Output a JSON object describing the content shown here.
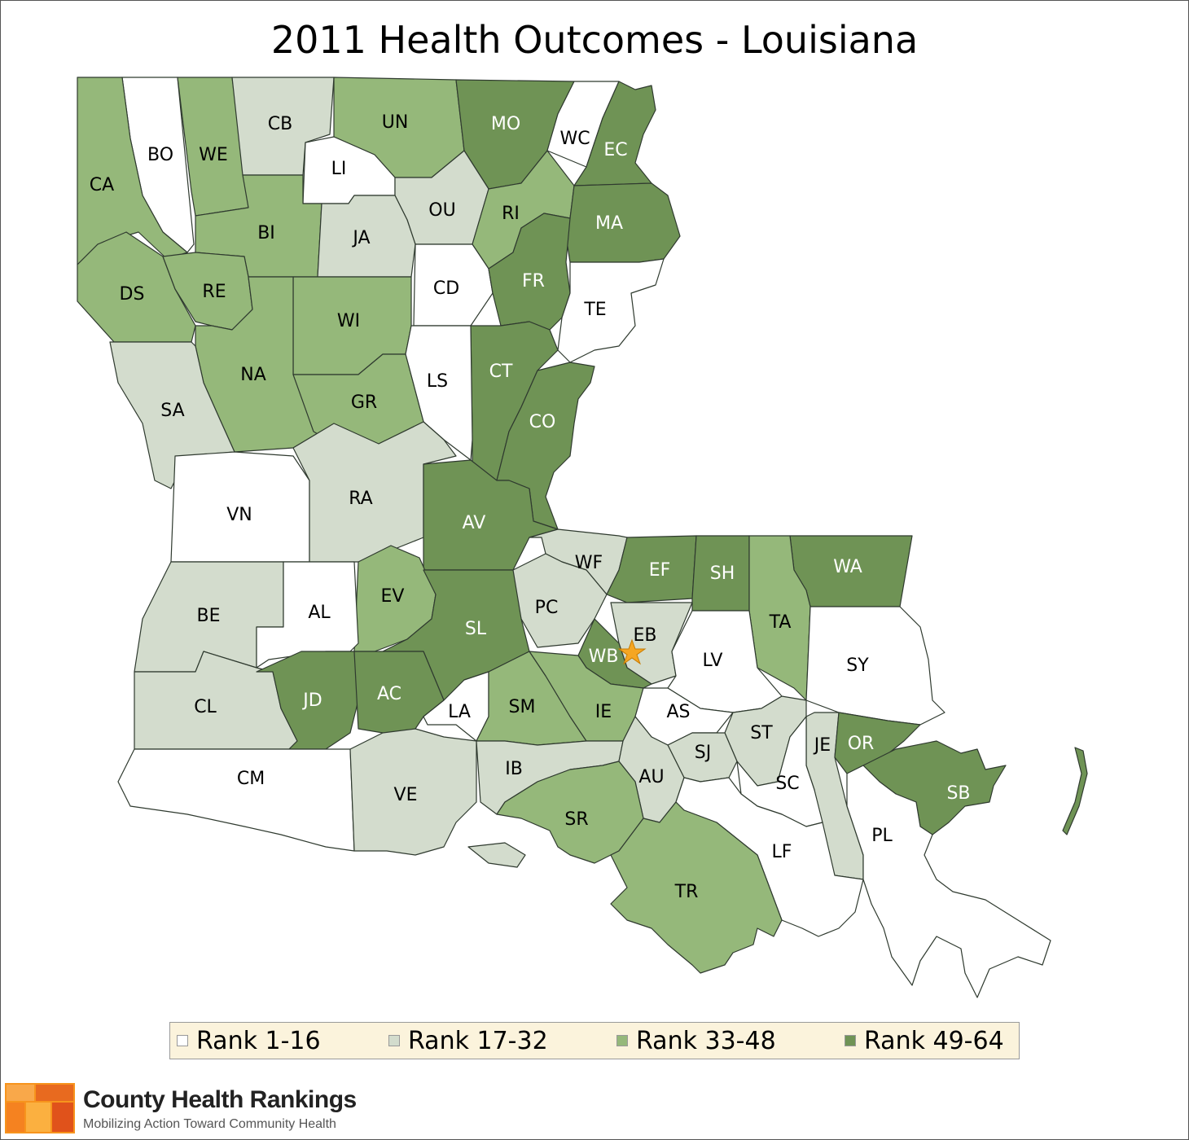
{
  "title": "2011 Health Outcomes - Louisiana",
  "colors": {
    "rank_1_16": "#ffffff",
    "rank_17_32": "#d3dccd",
    "rank_33_48": "#95b87a",
    "rank_49_64": "#6f9355",
    "marker": "#f5a623"
  },
  "legend": [
    {
      "label": "Rank 1-16",
      "tier": 1
    },
    {
      "label": "Rank 17-32",
      "tier": 2
    },
    {
      "label": "Rank 33-48",
      "tier": 3
    },
    {
      "label": "Rank 49-64",
      "tier": 4
    }
  ],
  "parishes": [
    {
      "code": "BO",
      "tier": 1
    },
    {
      "code": "CA",
      "tier": 3
    },
    {
      "code": "WE",
      "tier": 3
    },
    {
      "code": "CB",
      "tier": 2
    },
    {
      "code": "UN",
      "tier": 3
    },
    {
      "code": "MO",
      "tier": 4
    },
    {
      "code": "WC",
      "tier": 1
    },
    {
      "code": "EC",
      "tier": 4
    },
    {
      "code": "LI",
      "tier": 1
    },
    {
      "code": "OU",
      "tier": 2
    },
    {
      "code": "RI",
      "tier": 3
    },
    {
      "code": "MA",
      "tier": 4
    },
    {
      "code": "BI",
      "tier": 3
    },
    {
      "code": "JA",
      "tier": 2
    },
    {
      "code": "DS",
      "tier": 3
    },
    {
      "code": "RE",
      "tier": 3
    },
    {
      "code": "CD",
      "tier": 1
    },
    {
      "code": "FR",
      "tier": 4
    },
    {
      "code": "TE",
      "tier": 1
    },
    {
      "code": "WI",
      "tier": 3
    },
    {
      "code": "NA",
      "tier": 3
    },
    {
      "code": "CT",
      "tier": 4
    },
    {
      "code": "LS",
      "tier": 1
    },
    {
      "code": "GR",
      "tier": 3
    },
    {
      "code": "CO",
      "tier": 4
    },
    {
      "code": "SA",
      "tier": 2
    },
    {
      "code": "VN",
      "tier": 1
    },
    {
      "code": "RA",
      "tier": 2
    },
    {
      "code": "AV",
      "tier": 4
    },
    {
      "code": "WF",
      "tier": 2
    },
    {
      "code": "EF",
      "tier": 4
    },
    {
      "code": "SH",
      "tier": 4
    },
    {
      "code": "WA",
      "tier": 4
    },
    {
      "code": "TA",
      "tier": 3
    },
    {
      "code": "PC",
      "tier": 2
    },
    {
      "code": "EV",
      "tier": 3
    },
    {
      "code": "BE",
      "tier": 2
    },
    {
      "code": "AL",
      "tier": 1
    },
    {
      "code": "SL",
      "tier": 4
    },
    {
      "code": "EB",
      "tier": 2
    },
    {
      "code": "WB",
      "tier": 4
    },
    {
      "code": "LV",
      "tier": 1
    },
    {
      "code": "SY",
      "tier": 1
    },
    {
      "code": "CL",
      "tier": 2
    },
    {
      "code": "JD",
      "tier": 4
    },
    {
      "code": "AC",
      "tier": 4
    },
    {
      "code": "LA",
      "tier": 1
    },
    {
      "code": "SM",
      "tier": 3
    },
    {
      "code": "IE",
      "tier": 3
    },
    {
      "code": "AS",
      "tier": 1
    },
    {
      "code": "ST",
      "tier": 2
    },
    {
      "code": "SJ",
      "tier": 2
    },
    {
      "code": "JE",
      "tier": 2
    },
    {
      "code": "OR",
      "tier": 4
    },
    {
      "code": "SB",
      "tier": 4
    },
    {
      "code": "CM",
      "tier": 1
    },
    {
      "code": "VE",
      "tier": 2
    },
    {
      "code": "IB",
      "tier": 2
    },
    {
      "code": "AU",
      "tier": 2
    },
    {
      "code": "SC",
      "tier": 1
    },
    {
      "code": "SR",
      "tier": 3
    },
    {
      "code": "LF",
      "tier": 1
    },
    {
      "code": "PL",
      "tier": 1
    },
    {
      "code": "TR",
      "tier": 3
    }
  ],
  "capital_marker": "star-marker",
  "brand": {
    "name": "County Health Rankings",
    "tagline": "Mobilizing Action Toward Community Health"
  }
}
